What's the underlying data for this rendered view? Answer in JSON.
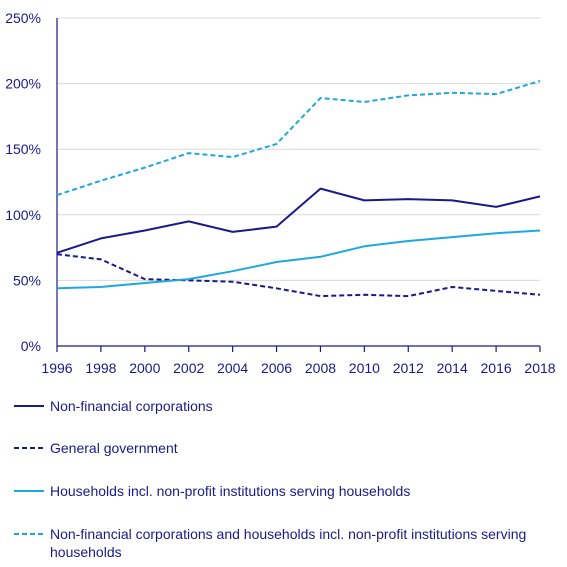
{
  "chart_data": {
    "type": "line",
    "x": [
      "1996",
      "1998",
      "2000",
      "2002",
      "2004",
      "2006",
      "2008",
      "2010",
      "2012",
      "2014",
      "2016",
      "2018"
    ],
    "ylim": [
      0,
      250
    ],
    "yticks": [
      "0%",
      "50%",
      "100%",
      "150%",
      "200%",
      "250%"
    ],
    "ytick_values": [
      0,
      50,
      100,
      150,
      200,
      250
    ],
    "grid": "horizontal",
    "legend_position": "bottom",
    "series": [
      {
        "name": "Non-financial corporations",
        "color": "#1a1a8a",
        "dash": "solid",
        "values": [
          71,
          82,
          88,
          95,
          87,
          91,
          120,
          111,
          112,
          111,
          106,
          114
        ]
      },
      {
        "name": "General government",
        "color": "#1a1a8a",
        "dash": "dashed",
        "values": [
          70,
          66,
          51,
          50,
          49,
          44,
          38,
          39,
          38,
          45,
          42,
          39
        ]
      },
      {
        "name": "Households incl. non-profit institutions serving households",
        "color": "#1ea8e0",
        "dash": "solid",
        "values": [
          44,
          45,
          48,
          51,
          57,
          64,
          68,
          76,
          80,
          83,
          86,
          88
        ]
      },
      {
        "name": "Non-financial corporations and households incl. non-profit institutions serving households",
        "color": "#1ea8e0",
        "dash": "dashed",
        "values": [
          115,
          126,
          136,
          147,
          144,
          154,
          189,
          186,
          191,
          193,
          192,
          202
        ]
      }
    ]
  }
}
